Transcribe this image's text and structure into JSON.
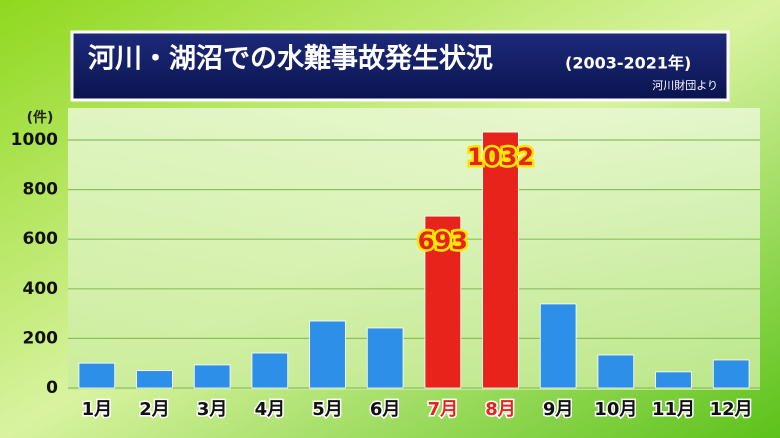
{
  "chart_data": {
    "type": "bar",
    "title": "河川・湖沼での水難事故発生状況",
    "subtitle": "(2003-2021年)",
    "source": "河川財団より",
    "y_label": "(件)",
    "categories": [
      "1月",
      "2月",
      "3月",
      "4月",
      "5月",
      "6月",
      "7月",
      "8月",
      "9月",
      "10月",
      "11月",
      "12月"
    ],
    "values": [
      100,
      70,
      93,
      141,
      270,
      242,
      693,
      1032,
      339,
      133,
      65,
      113
    ],
    "colors": [
      "#2e8fe8",
      "#2e8fe8",
      "#2e8fe8",
      "#2e8fe8",
      "#2e8fe8",
      "#2e8fe8",
      "#e8231c",
      "#e8231c",
      "#2e8fe8",
      "#2e8fe8",
      "#2e8fe8",
      "#2e8fe8"
    ],
    "data_labels": [
      false,
      false,
      false,
      false,
      false,
      false,
      true,
      true,
      false,
      false,
      false,
      false
    ],
    "ylim": [
      0,
      1100
    ],
    "yticks": [
      0,
      200,
      400,
      600,
      800,
      1000
    ],
    "grid": true
  }
}
